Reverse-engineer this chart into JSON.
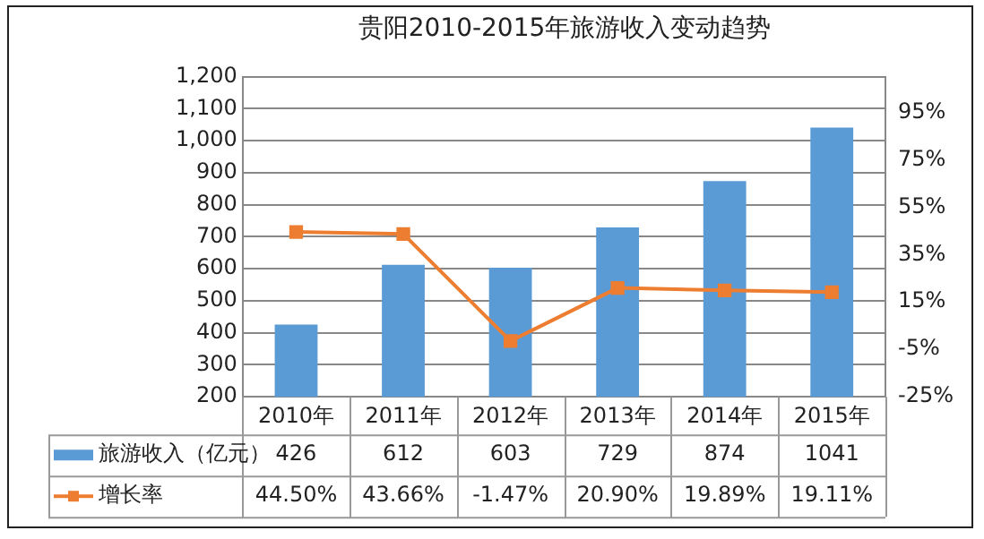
{
  "chart_data": {
    "type": "bar",
    "title": "贵阳2010-2015年旅游收入变动趋势",
    "categories": [
      "2010年",
      "2011年",
      "2012年",
      "2013年",
      "2014年",
      "2015年"
    ],
    "series": [
      {
        "name": "旅游收入（亿元）",
        "color": "#5b9bd5",
        "values": [
          426,
          612,
          603,
          729,
          874,
          1041
        ],
        "value_labels": [
          "426",
          "612",
          "603",
          "729",
          "874",
          "1041"
        ]
      },
      {
        "name": "增长率",
        "type": "line",
        "axis": "y2",
        "color": "#ed7d31",
        "values": [
          44.5,
          43.66,
          -1.47,
          20.9,
          19.89,
          19.11
        ],
        "value_labels": [
          "44.50%",
          "43.66%",
          "-1.47%",
          "20.90%",
          "19.89%",
          "19.11%"
        ]
      }
    ],
    "ylim": [
      200,
      1200
    ],
    "yticks": [
      200,
      300,
      400,
      500,
      600,
      700,
      800,
      900,
      {
        "value": 1000,
        "label": "1,000"
      },
      {
        "value": 1100,
        "label": "1,100"
      },
      {
        "value": 1200,
        "label": "1,200"
      }
    ],
    "y2lim": [
      -25,
      110
    ],
    "y2ticks": [
      {
        "value": -25,
        "label": "-25%"
      },
      {
        "value": -5,
        "label": "-5%"
      },
      {
        "value": 15,
        "label": "15%"
      },
      {
        "value": 35,
        "label": "35%"
      },
      {
        "value": 55,
        "label": "55%"
      },
      {
        "value": 75,
        "label": "75%"
      },
      {
        "value": 95,
        "label": "95%"
      }
    ],
    "grid": "y",
    "legend": "bottom",
    "marker": "square",
    "line_style": "solid"
  }
}
